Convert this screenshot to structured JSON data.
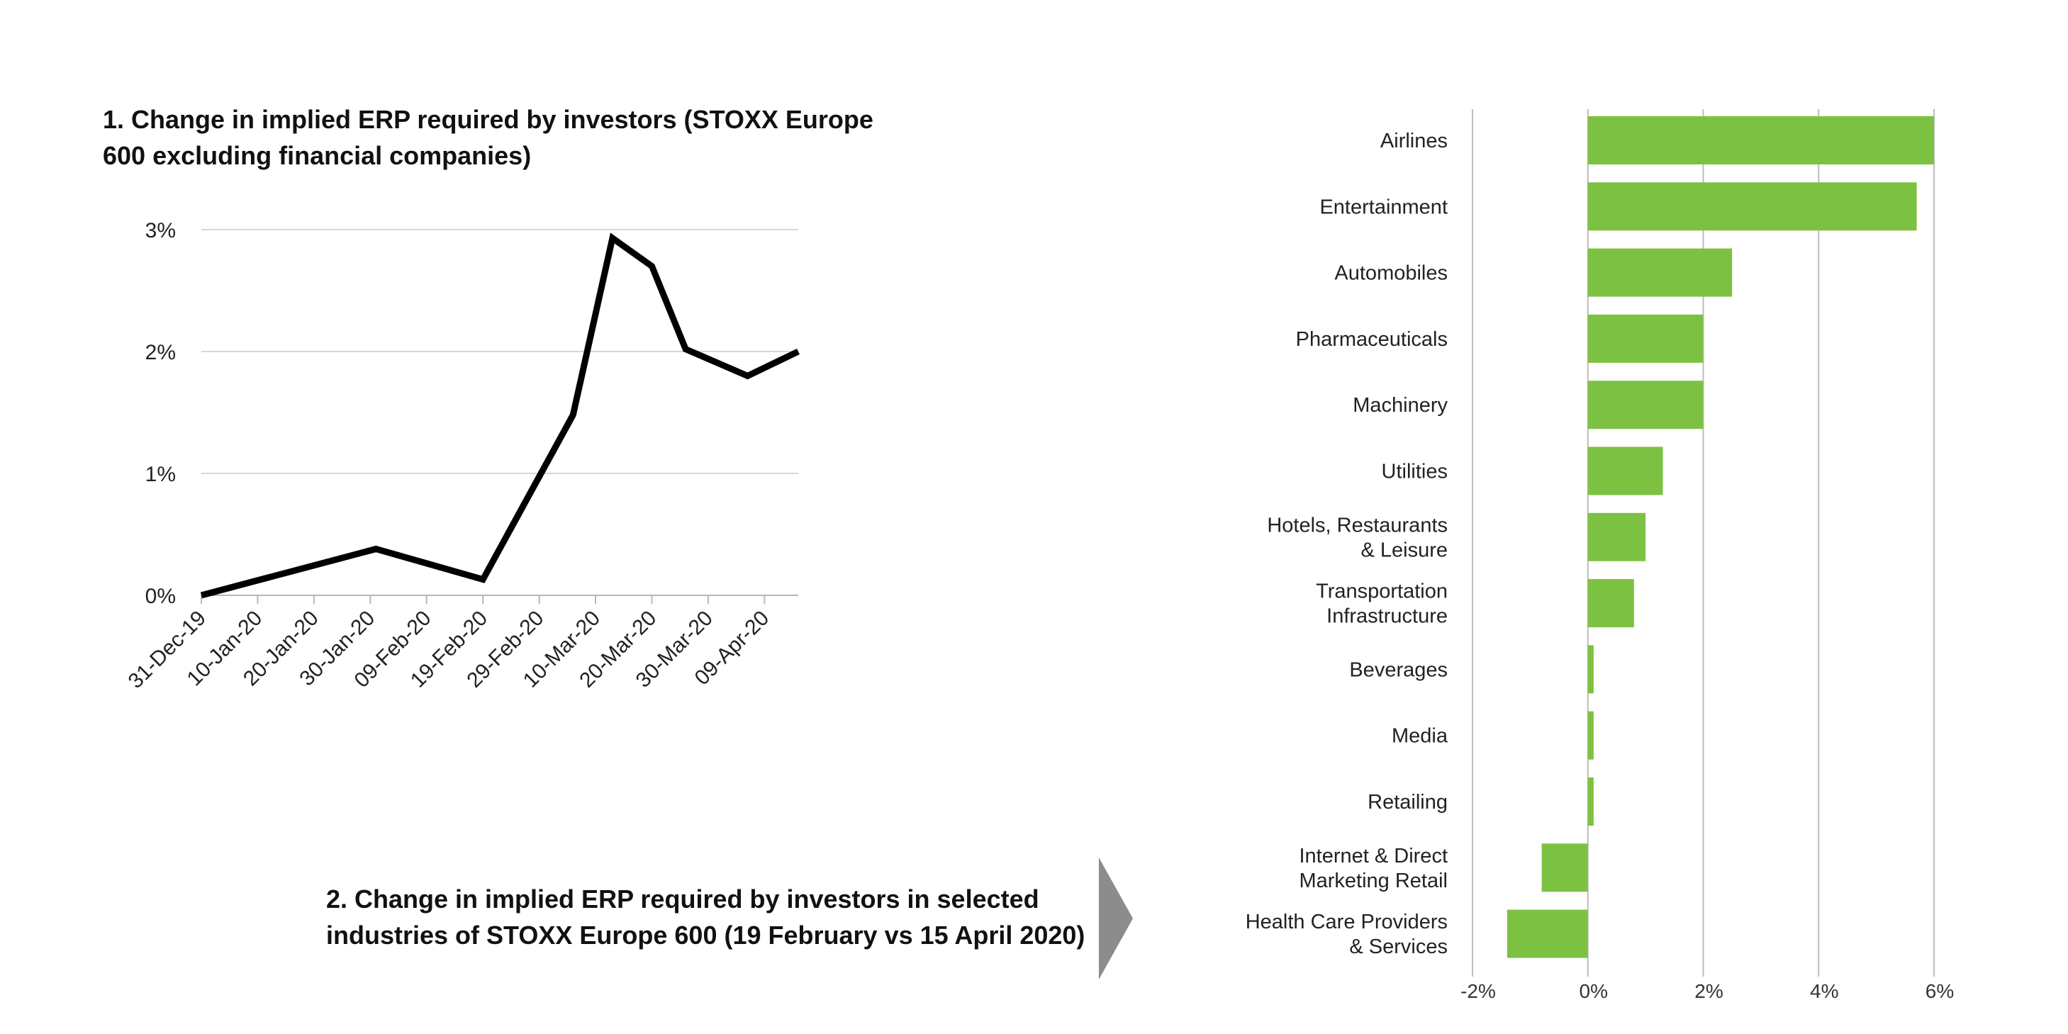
{
  "chart_data": [
    {
      "type": "line",
      "title": "1. Change in implied ERP required by investors (STOXX Europe 600 excluding financial companies)",
      "x_tick_labels": [
        "31-Dec-19",
        "10-Jan-20",
        "20-Jan-20",
        "30-Jan-20",
        "09-Feb-20",
        "19-Feb-20",
        "29-Feb-20",
        "10-Mar-20",
        "20-Mar-20",
        "30-Mar-20",
        "09-Apr-20"
      ],
      "y_tick_labels": [
        "0%",
        "1%",
        "2%",
        "3%"
      ],
      "ylim": [
        0,
        3
      ],
      "grid": true,
      "series": [
        {
          "color": "#000000",
          "points": [
            {
              "x": "2019-12-31",
              "y": 0.0
            },
            {
              "x": "2020-01-31",
              "y": 0.38
            },
            {
              "x": "2020-02-19",
              "y": 0.13
            },
            {
              "x": "2020-03-06",
              "y": 1.48
            },
            {
              "x": "2020-03-13",
              "y": 2.93
            },
            {
              "x": "2020-03-20",
              "y": 2.7
            },
            {
              "x": "2020-03-26",
              "y": 2.02
            },
            {
              "x": "2020-04-06",
              "y": 1.8
            },
            {
              "x": "2020-04-15",
              "y": 2.0
            }
          ]
        }
      ]
    },
    {
      "type": "bar",
      "orientation": "horizontal",
      "title": "2. Change in implied ERP required by investors in selected industries of STOXX Europe 600 (19 February vs 15 April 2020)",
      "categories": [
        [
          "Airlines"
        ],
        [
          "Entertainment"
        ],
        [
          "Automobiles"
        ],
        [
          "Pharmaceuticals"
        ],
        [
          "Machinery"
        ],
        [
          "Utilities"
        ],
        [
          "Hotels, Restaurants",
          "& Leisure"
        ],
        [
          "Transportation",
          "Infrastructure"
        ],
        [
          "Beverages"
        ],
        [
          "Media"
        ],
        [
          "Retailing"
        ],
        [
          "Internet & Direct",
          "Marketing Retail"
        ],
        [
          "Health Care Providers",
          "& Services"
        ]
      ],
      "values": [
        6.0,
        5.7,
        2.5,
        2.0,
        2.0,
        1.3,
        1.0,
        0.8,
        0.1,
        0.1,
        0.1,
        -0.8,
        -1.4
      ],
      "x_tick_labels": [
        "-2%",
        "0%",
        "2%",
        "4%",
        "6%"
      ],
      "xlim": [
        -2,
        6
      ],
      "grid": true,
      "bar_color": "#7DC142"
    }
  ],
  "arrow_color": "#8C8C8C"
}
